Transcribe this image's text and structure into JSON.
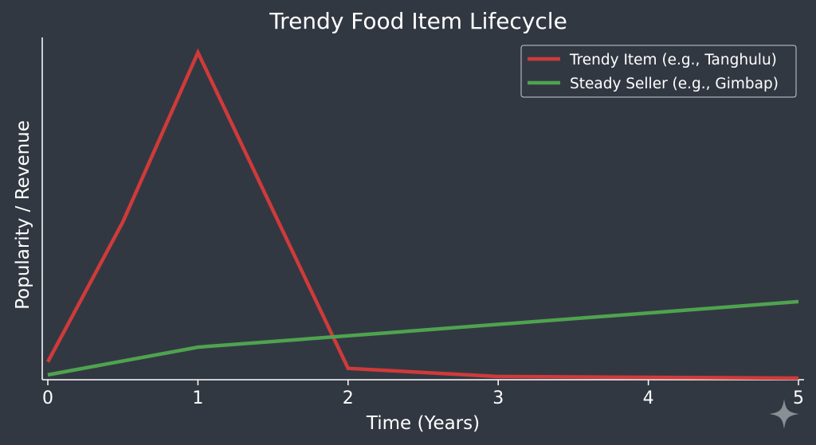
{
  "chart_data": {
    "type": "line",
    "title": "Trendy Food Item Lifecycle",
    "xlabel": "Time (Years)",
    "ylabel": "Popularity / Revenue",
    "xlim": [
      0,
      5
    ],
    "ylim": [
      0,
      105
    ],
    "xticks": [
      "0",
      "1",
      "2",
      "3",
      "4",
      "5"
    ],
    "grid": false,
    "legend_position": "top-right",
    "series": [
      {
        "name": "Trendy Item (e.g., Tanghulu)",
        "color": "#d03a3a",
        "x": [
          0,
          0.5,
          1,
          2,
          3,
          5
        ],
        "y": [
          5,
          48,
          100,
          3,
          0.5,
          0
        ]
      },
      {
        "name": "Steady Seller (e.g., Gimbap)",
        "color": "#4fa34f",
        "x": [
          0,
          1,
          5
        ],
        "y": [
          1,
          9.5,
          23.5
        ]
      }
    ]
  },
  "watermark_icon": "sparkle-icon"
}
